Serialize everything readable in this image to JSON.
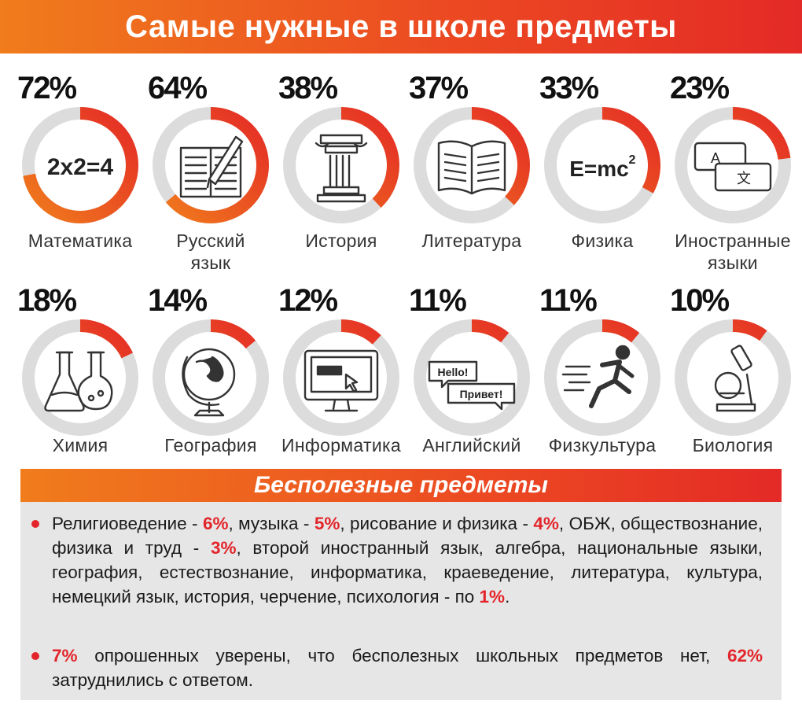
{
  "header": {
    "title": "Самые нужные в школе предметы"
  },
  "chart_data": {
    "type": "pie",
    "title": "Самые нужные в школе предметы",
    "unit": "%",
    "categories": [
      "Математика",
      "Русский язык",
      "История",
      "Литература",
      "Физика",
      "Иностранные языки",
      "Химия",
      "География",
      "Информатика",
      "Английский",
      "Физкультура",
      "Биология"
    ],
    "values": [
      72,
      64,
      38,
      37,
      33,
      23,
      18,
      14,
      12,
      11,
      11,
      10
    ],
    "percent_labels": [
      "72%",
      "64%",
      "38%",
      "37%",
      "33%",
      "23%",
      "18%",
      "14%",
      "12%",
      "11%",
      "11%",
      "10%"
    ],
    "label_lines": [
      [
        "Математика"
      ],
      [
        "Русский",
        "язык"
      ],
      [
        "История"
      ],
      [
        "Литература"
      ],
      [
        "Физика"
      ],
      [
        "Иностранные",
        "языки"
      ],
      [
        "Химия"
      ],
      [
        "География"
      ],
      [
        "Информатика"
      ],
      [
        "Английский"
      ],
      [
        "Физкультура"
      ],
      [
        "Биология"
      ]
    ],
    "icons": [
      "math-formula-icon",
      "notebook-pen-icon",
      "column-icon",
      "open-book-icon",
      "formula-emc2-icon",
      "translate-icon",
      "flasks-icon",
      "globe-icon",
      "computer-icon",
      "speech-bubbles-icon",
      "runner-icon",
      "microscope-icon"
    ],
    "icon_text": {
      "math": "2x2=4",
      "physics": "E=mc",
      "physics_sup": "2",
      "translate_a": "A",
      "translate_b": "文",
      "hello": "Hello!",
      "privet": "Привет!"
    },
    "colors": {
      "fill_start": "#f07c1c",
      "fill_end": "#e42a26",
      "track": "#dcdcdc"
    }
  },
  "useless": {
    "title": "Бесполезные предметы",
    "b1": {
      "t1": "Религиоведение - ",
      "v1": "6%",
      "t2": ", музыка - ",
      "v2": "5%",
      "t3": ", рисование и физика - ",
      "v3": "4%",
      "t4": ", ОБЖ, обществознание, физика и труд - ",
      "v4": "3%",
      "t5": ", второй иностранный язык, алгебра, национальные языки, география, естествознание, информатика, краеведение, литература, культура, немецкий язык, история, черчение, психология - по ",
      "v5": "1%",
      "t6": "."
    },
    "b2": {
      "v1": "7%",
      "t1": " опрошенных уверены, что бесполезных школьных предметов нет, ",
      "v2": "62%",
      "t2": " затруднились с ответом."
    }
  },
  "colors": {
    "accent": "#e3252b",
    "orange": "#f07c1c",
    "panel_bg": "#e6e6e6"
  }
}
